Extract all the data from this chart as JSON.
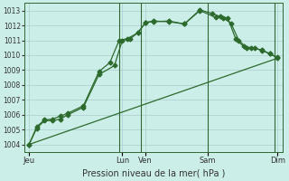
{
  "xlabel": "Pression niveau de la mer( hPa )",
  "bg_color": "#cceee8",
  "grid_color": "#aacccc",
  "line_color": "#2d6a2d",
  "ylim": [
    1003.5,
    1013.5
  ],
  "yticks": [
    1004,
    1005,
    1006,
    1007,
    1008,
    1009,
    1010,
    1011,
    1012,
    1013
  ],
  "xlim": [
    -0.3,
    16.3
  ],
  "xtick_labels": [
    "Jeu",
    "Lun",
    "Ven",
    "Sam",
    "Dim"
  ],
  "xtick_positions": [
    0,
    6,
    7.5,
    11.5,
    16
  ],
  "vlines_x": [
    5.8,
    7.2,
    11.5,
    15.8
  ],
  "series1_x": [
    0,
    0.5,
    1.0,
    1.5,
    2.0,
    2.5,
    3.5,
    4.5,
    5.5,
    6.0,
    6.5,
    7.0,
    7.5,
    8.0,
    9.0,
    10.0,
    11.0,
    12.0,
    12.5,
    13.0,
    13.5,
    14.0,
    14.5,
    15.0,
    15.5,
    16.0
  ],
  "series1_y": [
    1004.0,
    1005.1,
    1005.6,
    1005.6,
    1005.7,
    1006.0,
    1006.5,
    1008.7,
    1009.3,
    1011.0,
    1011.1,
    1011.5,
    1012.2,
    1012.25,
    1012.3,
    1012.1,
    1013.0,
    1012.55,
    1012.5,
    1012.15,
    1011.0,
    1010.5,
    1010.5,
    1010.3,
    1010.1,
    1009.8
  ],
  "series2_x": [
    0,
    0.5,
    1.0,
    1.5,
    2.0,
    2.5,
    3.5,
    4.5,
    5.2,
    5.8,
    6.3,
    7.0,
    7.5,
    8.0,
    9.0,
    10.0,
    11.0,
    11.8,
    12.3,
    12.8,
    13.3,
    13.8,
    14.3,
    15.0,
    15.5,
    16.0
  ],
  "series2_y": [
    1004.0,
    1005.2,
    1005.65,
    1005.7,
    1005.9,
    1006.1,
    1006.6,
    1008.9,
    1009.5,
    1011.0,
    1011.1,
    1011.5,
    1012.2,
    1012.3,
    1012.25,
    1012.1,
    1013.05,
    1012.8,
    1012.6,
    1012.5,
    1011.1,
    1010.6,
    1010.5,
    1010.35,
    1010.1,
    1009.85
  ],
  "series3_x": [
    0,
    16.0
  ],
  "series3_y": [
    1004.0,
    1009.8
  ],
  "marker_size": 2.5
}
